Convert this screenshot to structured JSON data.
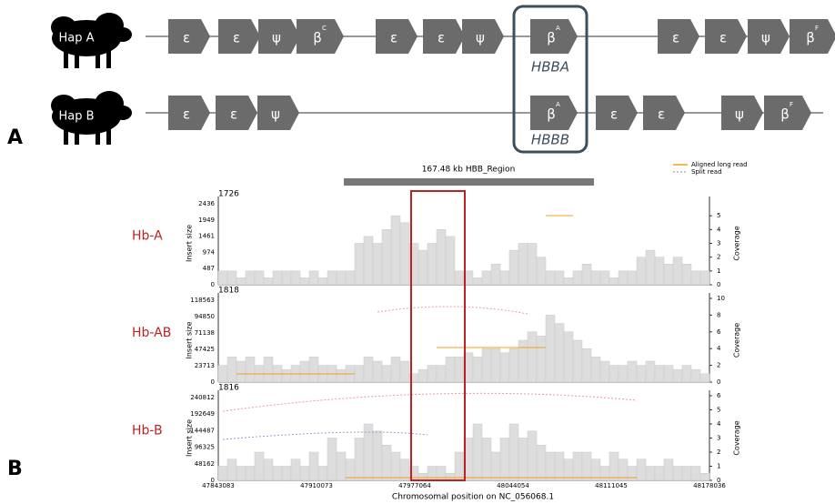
{
  "panel_labels": [
    "A",
    "B"
  ],
  "hap_a": {
    "label": "Hap A",
    "genes": [
      {
        "symbol": "ε"
      },
      {
        "symbol": "ε"
      },
      {
        "symbol": "ψ"
      },
      {
        "symbol": "β",
        "sup": "C"
      },
      {
        "symbol": "ε"
      },
      {
        "symbol": "ε"
      },
      {
        "symbol": "ψ"
      },
      {
        "symbol": "β",
        "sup": "A"
      },
      {
        "symbol": "ε"
      },
      {
        "symbol": "ε"
      },
      {
        "symbol": "ψ"
      },
      {
        "symbol": "β",
        "sup": "F"
      }
    ]
  },
  "hap_b": {
    "label": "Hap B",
    "genes": [
      {
        "symbol": "ε"
      },
      {
        "symbol": "ε"
      },
      {
        "symbol": "ψ"
      },
      {
        "symbol": "β",
        "sup": "A"
      },
      {
        "symbol": "ε"
      },
      {
        "symbol": "ε"
      },
      {
        "symbol": "ψ"
      },
      {
        "symbol": "β",
        "sup": "F"
      }
    ]
  },
  "box_labels": [
    "HBBA",
    "HBBB"
  ],
  "region_label": "167.48 kb HBB_Region",
  "legend": [
    "Aligned long read",
    "Split read"
  ],
  "y_label": "Insert size",
  "y2_label": "Coverage",
  "tracks": [
    {
      "name": "Hb-A",
      "max": "1726",
      "yticks": [
        0,
        487,
        974,
        1461,
        1949,
        2436
      ],
      "y2lim": [
        0,
        6
      ],
      "y2ticks": [
        0,
        1,
        2,
        3,
        4,
        5
      ],
      "coverage": [
        1,
        1,
        0.5,
        1,
        1,
        0.5,
        1,
        1,
        1,
        0.5,
        1,
        0.5,
        1,
        1,
        1,
        3,
        3.5,
        3,
        4,
        5,
        4.5,
        3,
        2.5,
        3,
        4,
        3.5,
        1,
        1,
        0.5,
        1,
        1.5,
        1,
        2.5,
        3,
        3,
        2,
        1,
        1,
        0.5,
        1,
        1.5,
        1,
        1,
        0.5,
        1,
        1,
        2,
        2.5,
        2,
        1.5,
        2,
        1.5,
        1,
        1
      ]
    },
    {
      "name": "Hb-AB",
      "max": "1818",
      "yticks": [
        0,
        23713,
        47425,
        71138,
        94850,
        118563
      ],
      "y2lim": [
        0,
        10
      ],
      "y2ticks": [
        0,
        2,
        4,
        6,
        8,
        10
      ],
      "coverage": [
        2,
        3,
        2.5,
        3,
        2,
        3,
        2,
        1.5,
        2,
        2.5,
        3,
        2,
        2,
        1.5,
        2,
        2,
        3,
        2.5,
        2,
        3,
        2.5,
        1,
        1.5,
        2,
        2,
        3,
        3,
        3.5,
        3,
        4,
        4,
        3.5,
        4,
        5,
        6,
        5.5,
        8,
        7,
        6,
        5,
        4,
        3,
        2.5,
        2,
        2,
        2.5,
        2,
        2.5,
        2,
        2,
        1.5,
        2,
        1.5,
        1
      ]
    },
    {
      "name": "Hb-B",
      "max": "1816",
      "yticks": [
        0,
        48162,
        96325,
        144487,
        192649,
        240812
      ],
      "y2lim": [
        0,
        6
      ],
      "y2ticks": [
        0,
        1,
        2,
        3,
        4,
        5,
        6
      ],
      "coverage": [
        1,
        1.5,
        1,
        1,
        2,
        1.5,
        1,
        1,
        1.5,
        1,
        2,
        1,
        3,
        2,
        1.5,
        3,
        4,
        3.5,
        2.5,
        2,
        1.5,
        1,
        0.5,
        1,
        1,
        0.5,
        2,
        3,
        4,
        3,
        2,
        3,
        4,
        3,
        3.5,
        2.5,
        2,
        2,
        1.5,
        2,
        2,
        1.5,
        1,
        2,
        1.5,
        1,
        1.5,
        1,
        1,
        1.5,
        1,
        1,
        1,
        0.5
      ]
    }
  ],
  "x_axis": {
    "label": "Chromosomal position on NC_056068.1",
    "ticks": [
      47843083,
      47910073,
      47977064,
      48044054,
      48111045,
      48178036
    ]
  }
}
